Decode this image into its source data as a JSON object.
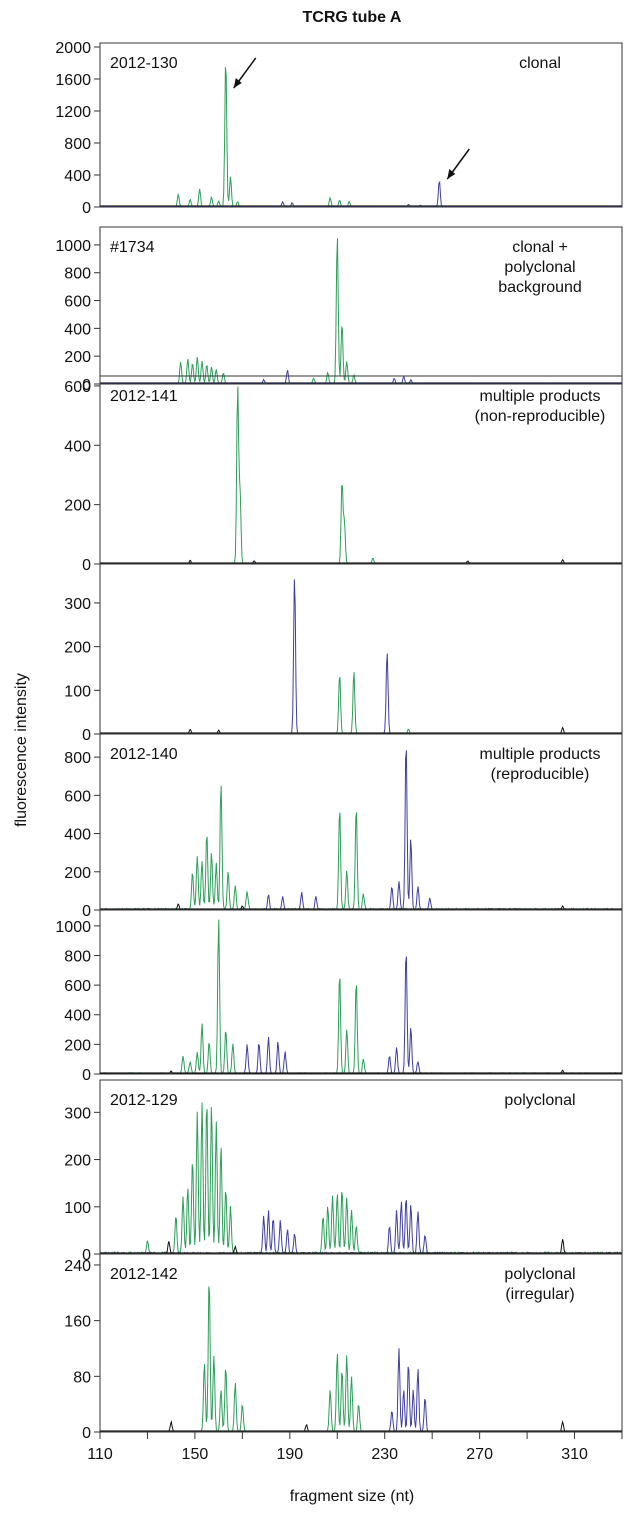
{
  "chart_data": {
    "type": "line",
    "title": "TCRG tube A",
    "xlabel": "fragment size (nt)",
    "ylabel": "fluorescence intensity",
    "xlim": [
      110,
      330
    ],
    "x_ticks": [
      110,
      150,
      190,
      230,
      270,
      310
    ],
    "colors": {
      "green": "#2f9e5b",
      "blue": "#3f3fa0",
      "black": "#111111"
    },
    "panels": [
      {
        "sample": "2012-130",
        "annotation": [
          "clonal"
        ],
        "ylim": [
          0,
          2000
        ],
        "y_ticks": [
          0,
          400,
          800,
          1200,
          1600,
          2000
        ],
        "arrows_at": [
          163,
          253
        ],
        "series": [
          {
            "color": "green",
            "noise": 25,
            "peaks": [
              [
                143,
                150
              ],
              [
                148,
                90
              ],
              [
                152,
                220
              ],
              [
                157,
                120
              ],
              [
                160,
                70
              ],
              [
                163,
                1880
              ],
              [
                165,
                380
              ],
              [
                168,
                60
              ],
              [
                207,
                110
              ],
              [
                211,
                80
              ],
              [
                215,
                60
              ]
            ]
          },
          {
            "color": "blue",
            "noise": 15,
            "peaks": [
              [
                187,
                60
              ],
              [
                191,
                50
              ],
              [
                240,
                30
              ],
              [
                245,
                20
              ],
              [
                253,
                330
              ]
            ]
          }
        ]
      },
      {
        "sample": "#1734",
        "annotation": [
          "clonal +",
          "polyclonal",
          "background"
        ],
        "ylim": [
          0,
          1100
        ],
        "y_ticks": [
          0,
          200,
          400,
          600,
          800,
          1000
        ],
        "series": [
          {
            "color": "green",
            "noise": 20,
            "peaks": [
              [
                144,
                160
              ],
              [
                147,
                180
              ],
              [
                149,
                150
              ],
              [
                151,
                190
              ],
              [
                153,
                160
              ],
              [
                155,
                140
              ],
              [
                157,
                120
              ],
              [
                159,
                100
              ],
              [
                162,
                80
              ],
              [
                200,
                40
              ],
              [
                206,
                80
              ],
              [
                210,
                1080
              ],
              [
                212,
                440
              ],
              [
                214,
                160
              ],
              [
                217,
                60
              ]
            ]
          },
          {
            "color": "blue",
            "noise": 12,
            "peaks": [
              [
                179,
                30
              ],
              [
                189,
                100
              ],
              [
                234,
                40
              ],
              [
                238,
                50
              ],
              [
                241,
                30
              ]
            ]
          }
        ]
      },
      {
        "sample": "2012-141",
        "annotation": [
          "multiple products",
          "(non-reproducible)"
        ],
        "ylim": [
          0,
          620
        ],
        "y_ticks": [
          0,
          200,
          400,
          600
        ],
        "series": [
          {
            "color": "green",
            "noise": 6,
            "peaks": [
              [
                168,
                600
              ],
              [
                169,
                250
              ],
              [
                212,
                280
              ],
              [
                213,
                140
              ],
              [
                225,
                20
              ]
            ]
          },
          {
            "color": "black",
            "noise": 4,
            "peaks": [
              [
                148,
                12
              ],
              [
                175,
                10
              ],
              [
                265,
                10
              ],
              [
                305,
                14
              ]
            ]
          }
        ]
      },
      {
        "sample": "",
        "annotation": [],
        "ylim": [
          0,
          380
        ],
        "y_ticks": [
          0,
          100,
          200,
          300
        ],
        "series": [
          {
            "color": "blue",
            "noise": 4,
            "peaks": [
              [
                192,
                365
              ],
              [
                231,
                190
              ]
            ]
          },
          {
            "color": "green",
            "noise": 4,
            "peaks": [
              [
                211,
                140
              ],
              [
                217,
                145
              ],
              [
                240,
                10
              ]
            ]
          },
          {
            "color": "black",
            "noise": 3,
            "peaks": [
              [
                148,
                10
              ],
              [
                160,
                8
              ],
              [
                305,
                14
              ]
            ]
          }
        ]
      },
      {
        "sample": "2012-140",
        "annotation": [
          "multiple products",
          "(reproducible)"
        ],
        "ylim": [
          0,
          900
        ],
        "y_ticks": [
          0,
          200,
          400,
          600,
          800
        ],
        "series": [
          {
            "color": "green",
            "noise": 25,
            "peaks": [
              [
                149,
                200
              ],
              [
                151,
                280
              ],
              [
                153,
                250
              ],
              [
                155,
                410
              ],
              [
                157,
                300
              ],
              [
                159,
                240
              ],
              [
                161,
                670
              ],
              [
                164,
                200
              ],
              [
                167,
                120
              ],
              [
                172,
                90
              ],
              [
                211,
                540
              ],
              [
                214,
                200
              ],
              [
                218,
                550
              ],
              [
                221,
                80
              ]
            ]
          },
          {
            "color": "blue",
            "noise": 15,
            "peaks": [
              [
                181,
                80
              ],
              [
                187,
                70
              ],
              [
                195,
                90
              ],
              [
                201,
                70
              ],
              [
                233,
                120
              ],
              [
                236,
                150
              ],
              [
                239,
                900
              ],
              [
                241,
                380
              ],
              [
                244,
                120
              ],
              [
                249,
                60
              ]
            ]
          },
          {
            "color": "black",
            "noise": 6,
            "peaks": [
              [
                143,
                30
              ],
              [
                170,
                20
              ],
              [
                305,
                20
              ]
            ]
          }
        ]
      },
      {
        "sample": "",
        "annotation": [],
        "ylim": [
          0,
          1080
        ],
        "y_ticks": [
          0,
          200,
          400,
          600,
          800,
          1000
        ],
        "series": [
          {
            "color": "green",
            "noise": 25,
            "peaks": [
              [
                145,
                120
              ],
              [
                148,
                80
              ],
              [
                151,
                140
              ],
              [
                153,
                340
              ],
              [
                156,
                220
              ],
              [
                160,
                1050
              ],
              [
                163,
                300
              ],
              [
                166,
                200
              ],
              [
                211,
                690
              ],
              [
                214,
                300
              ],
              [
                218,
                640
              ],
              [
                221,
                100
              ]
            ]
          },
          {
            "color": "blue",
            "noise": 18,
            "peaks": [
              [
                172,
                200
              ],
              [
                177,
                210
              ],
              [
                181,
                250
              ],
              [
                185,
                220
              ],
              [
                188,
                150
              ],
              [
                232,
                120
              ],
              [
                235,
                180
              ],
              [
                239,
                850
              ],
              [
                241,
                320
              ],
              [
                244,
                80
              ]
            ]
          },
          {
            "color": "black",
            "noise": 6,
            "peaks": [
              [
                140,
                20
              ],
              [
                305,
                25
              ]
            ]
          }
        ]
      },
      {
        "sample": "2012-129",
        "annotation": [
          "polyclonal"
        ],
        "ylim": [
          0,
          360
        ],
        "y_ticks": [
          0,
          100,
          200,
          300
        ],
        "series": [
          {
            "color": "green",
            "noise": 12,
            "peaks": [
              [
                130,
                25
              ],
              [
                142,
                80
              ],
              [
                145,
                120
              ],
              [
                147,
                140
              ],
              [
                149,
                200
              ],
              [
                151,
                300
              ],
              [
                153,
                320
              ],
              [
                155,
                330
              ],
              [
                157,
                320
              ],
              [
                159,
                280
              ],
              [
                161,
                230
              ],
              [
                163,
                140
              ],
              [
                165,
                100
              ],
              [
                204,
                80
              ],
              [
                206,
                100
              ],
              [
                208,
                120
              ],
              [
                210,
                130
              ],
              [
                212,
                140
              ],
              [
                214,
                120
              ],
              [
                216,
                90
              ],
              [
                218,
                60
              ]
            ]
          },
          {
            "color": "blue",
            "noise": 10,
            "peaks": [
              [
                179,
                80
              ],
              [
                181,
                90
              ],
              [
                183,
                75
              ],
              [
                186,
                70
              ],
              [
                189,
                50
              ],
              [
                192,
                40
              ],
              [
                232,
                60
              ],
              [
                235,
                90
              ],
              [
                237,
                110
              ],
              [
                239,
                120
              ],
              [
                241,
                105
              ],
              [
                244,
                90
              ],
              [
                247,
                40
              ]
            ]
          },
          {
            "color": "black",
            "noise": 6,
            "peaks": [
              [
                139,
                25
              ],
              [
                167,
                15
              ],
              [
                305,
                30
              ]
            ]
          }
        ]
      },
      {
        "sample": "2012-142",
        "annotation": [
          "polyclonal",
          "(irregular)"
        ],
        "ylim": [
          0,
          250
        ],
        "y_ticks": [
          0,
          80,
          160,
          240
        ],
        "series": [
          {
            "color": "green",
            "noise": 4,
            "peaks": [
              [
                154,
                100
              ],
              [
                156,
                225
              ],
              [
                158,
                110
              ],
              [
                161,
                60
              ],
              [
                163,
                95
              ],
              [
                167,
                70
              ],
              [
                170,
                40
              ],
              [
                207,
                60
              ],
              [
                210,
                115
              ],
              [
                212,
                90
              ],
              [
                214,
                110
              ],
              [
                216,
                80
              ],
              [
                219,
                40
              ]
            ]
          },
          {
            "color": "blue",
            "noise": 4,
            "peaks": [
              [
                233,
                30
              ],
              [
                236,
                120
              ],
              [
                238,
                60
              ],
              [
                240,
                100
              ],
              [
                242,
                60
              ],
              [
                244,
                90
              ],
              [
                247,
                50
              ]
            ]
          },
          {
            "color": "black",
            "noise": 3,
            "peaks": [
              [
                140,
                14
              ],
              [
                197,
                10
              ],
              [
                305,
                14
              ]
            ]
          }
        ]
      }
    ]
  }
}
